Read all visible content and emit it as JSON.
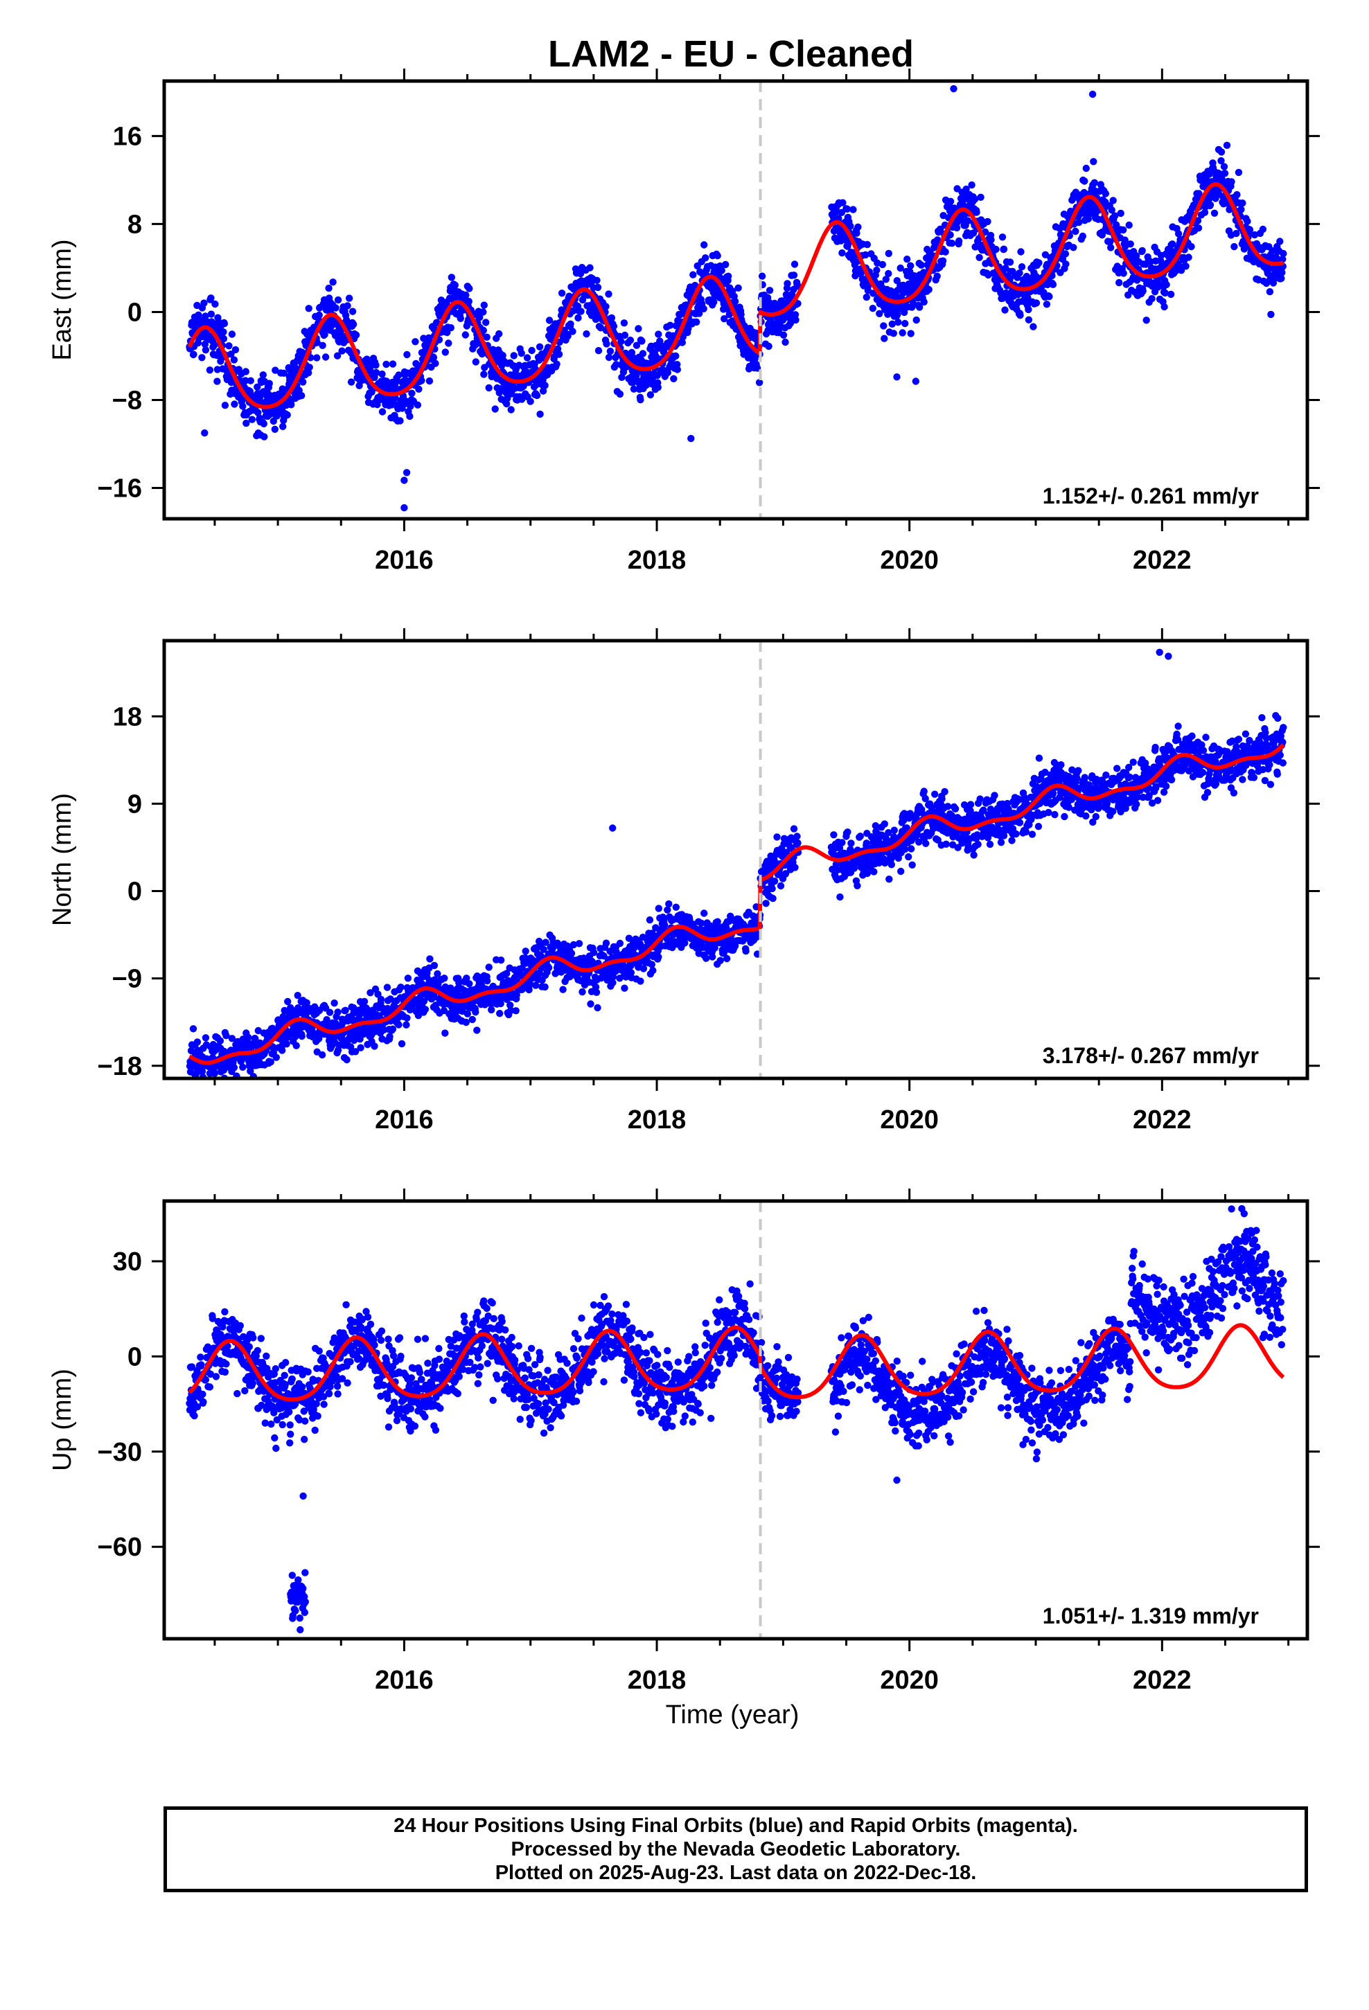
{
  "title": "LAM2  - EU - Cleaned",
  "xlabel": "Time (year)",
  "colors": {
    "points": "#0000ff",
    "model": "#ff0000",
    "step_line": "#c8c8c8",
    "frame": "#000000"
  },
  "caption": [
    "24 Hour Positions Using Final Orbits (blue) and Rapid Orbits (magenta).",
    "Processed by the Nevada Geodetic Laboratory.",
    "Plotted on 2025-Aug-23. Last data on 2022-Dec-18."
  ],
  "chart_data": [
    {
      "type": "scatter",
      "component": "east",
      "ylabel": "East (mm)",
      "rate_text": "1.152+/- 0.261 mm/yr",
      "xlim": [
        2014.1,
        2023.15
      ],
      "ylim": [
        -18.8,
        21.0
      ],
      "xticks": [
        2016,
        2018,
        2020,
        2022
      ],
      "xtick_labels": [
        "2016",
        "2018",
        "2020",
        "2022"
      ],
      "yticks": [
        16,
        8,
        0,
        -8,
        -16
      ],
      "ytick_labels": [
        "16",
        "8",
        "0",
        "−8",
        "−16"
      ],
      "data_start": 2014.3,
      "data_end": 2022.96,
      "gap": [
        2019.12,
        2019.38
      ],
      "step_epoch": 2018.82,
      "model": {
        "rate": 1.152,
        "ref_year": 2018.5,
        "intercept_before": -1.2,
        "intercept_after": 2.6,
        "annual_amp": 3.9,
        "annual_phase_year": 0.42,
        "semiannual_amp": 0.6,
        "noise_sd": 1.3
      },
      "outliers": [
        [
          2016.0,
          -15.3
        ],
        [
          2016.02,
          -14.6
        ],
        [
          2016.0,
          -17.8
        ],
        [
          2020.35,
          20.3
        ],
        [
          2021.45,
          19.8
        ],
        [
          2019.9,
          -5.9
        ],
        [
          2020.05,
          -6.3
        ],
        [
          2018.27,
          -11.5
        ],
        [
          2014.42,
          -11.0
        ]
      ]
    },
    {
      "type": "scatter",
      "component": "north",
      "ylabel": "North (mm)",
      "rate_text": "3.178+/- 0.267 mm/yr",
      "xlim": [
        2014.1,
        2023.15
      ],
      "ylim": [
        -19.3,
        25.8
      ],
      "xticks": [
        2016,
        2018,
        2020,
        2022
      ],
      "xtick_labels": [
        "2016",
        "2018",
        "2020",
        "2022"
      ],
      "yticks": [
        18,
        9,
        0,
        -9,
        -18
      ],
      "ytick_labels": [
        "18",
        "9",
        "0",
        "−9",
        "−18"
      ],
      "data_start": 2014.3,
      "data_end": 2022.96,
      "gap": [
        2019.12,
        2019.38
      ],
      "step_epoch": 2018.82,
      "model": {
        "rate": 3.178,
        "ref_year": 2018.5,
        "intercept_before": -4.1,
        "intercept_after": 0.9,
        "annual_amp": 1.0,
        "annual_phase_year": 0.15,
        "semiannual_amp": 0.5,
        "noise_sd": 1.2
      },
      "outliers": [
        [
          2021.98,
          24.6
        ],
        [
          2022.05,
          24.2
        ],
        [
          2017.65,
          6.5
        ],
        [
          2014.35,
          -18.9
        ]
      ]
    },
    {
      "type": "scatter",
      "component": "up",
      "ylabel": "Up (mm)",
      "rate_text": "1.051+/- 1.319 mm/yr",
      "xlim": [
        2014.1,
        2023.15
      ],
      "ylim": [
        -89.0,
        49.0
      ],
      "xticks": [
        2016,
        2018,
        2020,
        2022
      ],
      "xtick_labels": [
        "2016",
        "2018",
        "2020",
        "2022"
      ],
      "yticks": [
        30,
        0,
        -30,
        -60
      ],
      "ytick_labels": [
        "30",
        "0",
        "−30",
        "−60"
      ],
      "data_start": 2014.3,
      "data_end": 2022.96,
      "gap": [
        2019.12,
        2019.38
      ],
      "step_epoch": 2018.82,
      "model": {
        "rate": 1.051,
        "ref_year": 2018.5,
        "intercept_before": -2.0,
        "intercept_after": -5.5,
        "annual_amp": 9.5,
        "annual_phase_year": 0.62,
        "semiannual_amp": 1.5,
        "noise_sd": 5.5
      },
      "outliers": [
        [
          2015.2,
          -44.0
        ],
        [
          2016.05,
          -23.5
        ],
        [
          2022.55,
          46.5
        ],
        [
          2022.65,
          45.0
        ],
        [
          2019.9,
          -39.0
        ]
      ]
    }
  ]
}
